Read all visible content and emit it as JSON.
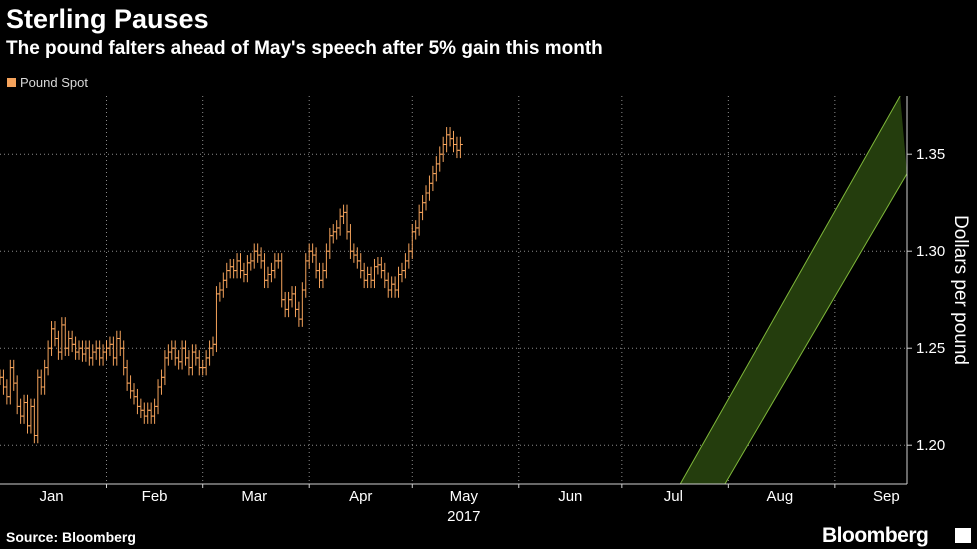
{
  "header": {
    "title": "Sterling Pauses",
    "subtitle": "The pound falters ahead of May's speech after 5% gain this month"
  },
  "footer": {
    "source": "Source: Bloomberg",
    "brand": "Bloomberg"
  },
  "colors": {
    "background": "#000000",
    "series": "#f5a35c",
    "channel_fill": "#243d0d",
    "channel_line": "#7fb83a",
    "grid": "#8c8c8c",
    "text": "#ffffff"
  },
  "chart_data": {
    "type": "ohlc",
    "legend": [
      "Pound Spot"
    ],
    "legend_position": "top-left",
    "ylabel": "Dollars per pound",
    "xlabel": "2017",
    "ylim": [
      1.18,
      1.38
    ],
    "xlim": [
      "2017-01-01",
      "2017-09-22"
    ],
    "y_ticks": [
      1.2,
      1.25,
      1.3,
      1.35
    ],
    "y_tick_labels": [
      "1.20",
      "1.25",
      "1.30",
      "1.35"
    ],
    "x_tick_labels": [
      {
        "label": "Jan",
        "date": "2017-01-16"
      },
      {
        "label": "Feb",
        "date": "2017-02-15"
      },
      {
        "label": "Mar",
        "date": "2017-03-16"
      },
      {
        "label": "Apr",
        "date": "2017-04-16"
      },
      {
        "label": "May",
        "date": "2017-05-16"
      },
      {
        "label": "Jun",
        "date": "2017-06-16"
      },
      {
        "label": "Jul",
        "date": "2017-07-16"
      },
      {
        "label": "Aug",
        "date": "2017-08-16"
      },
      {
        "label": "Sep",
        "date": "2017-09-16"
      }
    ],
    "month_gridlines": [
      "2017-02-01",
      "2017-03-01",
      "2017-04-01",
      "2017-05-01",
      "2017-06-01",
      "2017-07-01",
      "2017-08-01",
      "2017-09-01"
    ],
    "grid": true,
    "channel": {
      "description": "upward trend channel",
      "upper": [
        {
          "x": "2017-07-18",
          "y": 1.18
        },
        {
          "x": "2017-09-20",
          "y": 1.38
        }
      ],
      "lower": [
        {
          "x": "2017-07-31",
          "y": 1.18
        },
        {
          "x": "2017-09-22",
          "y": 1.34
        }
      ]
    },
    "series": [
      {
        "name": "Pound Spot",
        "points": [
          [
            "2017-01-01",
            1.235
          ],
          [
            "2017-01-02",
            1.23
          ],
          [
            "2017-01-03",
            1.225
          ],
          [
            "2017-01-04",
            1.24
          ],
          [
            "2017-01-05",
            1.232
          ],
          [
            "2017-01-06",
            1.22
          ],
          [
            "2017-01-07",
            1.215
          ],
          [
            "2017-01-08",
            1.222
          ],
          [
            "2017-01-09",
            1.21
          ],
          [
            "2017-01-10",
            1.22
          ],
          [
            "2017-01-11",
            1.205
          ],
          [
            "2017-01-12",
            1.235
          ],
          [
            "2017-01-13",
            1.23
          ],
          [
            "2017-01-14",
            1.24
          ],
          [
            "2017-01-15",
            1.25
          ],
          [
            "2017-01-16",
            1.26
          ],
          [
            "2017-01-17",
            1.255
          ],
          [
            "2017-01-18",
            1.248
          ],
          [
            "2017-01-19",
            1.262
          ],
          [
            "2017-01-20",
            1.25
          ],
          [
            "2017-01-21",
            1.255
          ],
          [
            "2017-01-22",
            1.252
          ],
          [
            "2017-01-23",
            1.248
          ],
          [
            "2017-01-24",
            1.25
          ],
          [
            "2017-01-25",
            1.247
          ],
          [
            "2017-01-26",
            1.25
          ],
          [
            "2017-01-27",
            1.245
          ],
          [
            "2017-01-28",
            1.248
          ],
          [
            "2017-01-29",
            1.25
          ],
          [
            "2017-01-30",
            1.245
          ],
          [
            "2017-01-31",
            1.248
          ],
          [
            "2017-02-01",
            1.25
          ],
          [
            "2017-02-02",
            1.252
          ],
          [
            "2017-02-03",
            1.245
          ],
          [
            "2017-02-04",
            1.255
          ],
          [
            "2017-02-05",
            1.25
          ],
          [
            "2017-02-06",
            1.24
          ],
          [
            "2017-02-07",
            1.232
          ],
          [
            "2017-02-08",
            1.228
          ],
          [
            "2017-02-09",
            1.225
          ],
          [
            "2017-02-10",
            1.22
          ],
          [
            "2017-02-11",
            1.218
          ],
          [
            "2017-02-12",
            1.215
          ],
          [
            "2017-02-13",
            1.218
          ],
          [
            "2017-02-14",
            1.215
          ],
          [
            "2017-02-15",
            1.22
          ],
          [
            "2017-02-16",
            1.23
          ],
          [
            "2017-02-17",
            1.235
          ],
          [
            "2017-02-18",
            1.245
          ],
          [
            "2017-02-19",
            1.248
          ],
          [
            "2017-02-20",
            1.25
          ],
          [
            "2017-02-21",
            1.245
          ],
          [
            "2017-02-22",
            1.243
          ],
          [
            "2017-02-23",
            1.25
          ],
          [
            "2017-02-24",
            1.245
          ],
          [
            "2017-02-25",
            1.24
          ],
          [
            "2017-02-26",
            1.248
          ],
          [
            "2017-02-27",
            1.245
          ],
          [
            "2017-02-28",
            1.24
          ],
          [
            "2017-03-01",
            1.24
          ],
          [
            "2017-03-02",
            1.245
          ],
          [
            "2017-03-03",
            1.25
          ],
          [
            "2017-03-04",
            1.252
          ],
          [
            "2017-03-05",
            1.278
          ],
          [
            "2017-03-06",
            1.28
          ],
          [
            "2017-03-07",
            1.285
          ],
          [
            "2017-03-08",
            1.29
          ],
          [
            "2017-03-09",
            1.292
          ],
          [
            "2017-03-10",
            1.29
          ],
          [
            "2017-03-11",
            1.295
          ],
          [
            "2017-03-12",
            1.29
          ],
          [
            "2017-03-13",
            1.288
          ],
          [
            "2017-03-14",
            1.294
          ],
          [
            "2017-03-15",
            1.295
          ],
          [
            "2017-03-16",
            1.3
          ],
          [
            "2017-03-17",
            1.298
          ],
          [
            "2017-03-18",
            1.295
          ],
          [
            "2017-03-19",
            1.285
          ],
          [
            "2017-03-20",
            1.288
          ],
          [
            "2017-03-21",
            1.29
          ],
          [
            "2017-03-22",
            1.295
          ],
          [
            "2017-03-23",
            1.295
          ],
          [
            "2017-03-24",
            1.275
          ],
          [
            "2017-03-25",
            1.27
          ],
          [
            "2017-03-26",
            1.275
          ],
          [
            "2017-03-27",
            1.278
          ],
          [
            "2017-03-28",
            1.27
          ],
          [
            "2017-03-29",
            1.265
          ],
          [
            "2017-03-30",
            1.28
          ],
          [
            "2017-03-31",
            1.295
          ],
          [
            "2017-04-01",
            1.3
          ],
          [
            "2017-04-02",
            1.298
          ],
          [
            "2017-04-03",
            1.29
          ],
          [
            "2017-04-04",
            1.285
          ],
          [
            "2017-04-05",
            1.29
          ],
          [
            "2017-04-06",
            1.3
          ],
          [
            "2017-04-07",
            1.308
          ],
          [
            "2017-04-08",
            1.31
          ],
          [
            "2017-04-09",
            1.312
          ],
          [
            "2017-04-10",
            1.318
          ],
          [
            "2017-04-11",
            1.32
          ],
          [
            "2017-04-12",
            1.31
          ],
          [
            "2017-04-13",
            1.3
          ],
          [
            "2017-04-14",
            1.298
          ],
          [
            "2017-04-15",
            1.295
          ],
          [
            "2017-04-16",
            1.29
          ],
          [
            "2017-04-17",
            1.285
          ],
          [
            "2017-04-18",
            1.288
          ],
          [
            "2017-04-19",
            1.285
          ],
          [
            "2017-04-20",
            1.292
          ],
          [
            "2017-04-21",
            1.293
          ],
          [
            "2017-04-22",
            1.29
          ],
          [
            "2017-04-23",
            1.285
          ],
          [
            "2017-04-24",
            1.28
          ],
          [
            "2017-04-25",
            1.283
          ],
          [
            "2017-04-26",
            1.28
          ],
          [
            "2017-04-27",
            1.288
          ],
          [
            "2017-04-28",
            1.29
          ],
          [
            "2017-04-29",
            1.295
          ],
          [
            "2017-04-30",
            1.3
          ],
          [
            "2017-05-01",
            1.31
          ],
          [
            "2017-05-02",
            1.312
          ],
          [
            "2017-05-03",
            1.32
          ],
          [
            "2017-05-04",
            1.325
          ],
          [
            "2017-05-05",
            1.33
          ],
          [
            "2017-05-06",
            1.335
          ],
          [
            "2017-05-07",
            1.34
          ],
          [
            "2017-05-08",
            1.345
          ],
          [
            "2017-05-09",
            1.35
          ],
          [
            "2017-05-10",
            1.355
          ],
          [
            "2017-05-11",
            1.36
          ],
          [
            "2017-05-12",
            1.358
          ],
          [
            "2017-05-13",
            1.355
          ],
          [
            "2017-05-14",
            1.352
          ],
          [
            "2017-05-15",
            1.355
          ]
        ]
      }
    ]
  }
}
